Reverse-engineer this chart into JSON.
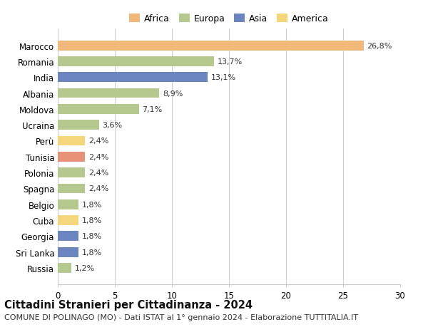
{
  "categories": [
    "Russia",
    "Sri Lanka",
    "Georgia",
    "Cuba",
    "Belgio",
    "Spagna",
    "Polonia",
    "Tunisia",
    "Perù",
    "Ucraina",
    "Moldova",
    "Albania",
    "India",
    "Romania",
    "Marocco"
  ],
  "values": [
    1.2,
    1.8,
    1.8,
    1.8,
    1.8,
    2.4,
    2.4,
    2.4,
    2.4,
    3.6,
    7.1,
    8.9,
    13.1,
    13.7,
    26.8
  ],
  "labels": [
    "1,2%",
    "1,8%",
    "1,8%",
    "1,8%",
    "1,8%",
    "2,4%",
    "2,4%",
    "2,4%",
    "2,4%",
    "3,6%",
    "7,1%",
    "8,9%",
    "13,1%",
    "13,7%",
    "26,8%"
  ],
  "colors": [
    "#b5c98e",
    "#6b85c0",
    "#6b85c0",
    "#f5d67a",
    "#b5c98e",
    "#b5c98e",
    "#b5c98e",
    "#e8927a",
    "#f5d67a",
    "#b5c98e",
    "#b5c98e",
    "#b5c98e",
    "#6b85c0",
    "#b5c98e",
    "#f0b87a"
  ],
  "legend": [
    {
      "label": "Africa",
      "color": "#f0b87a"
    },
    {
      "label": "Europa",
      "color": "#b5c98e"
    },
    {
      "label": "Asia",
      "color": "#6b85c0"
    },
    {
      "label": "America",
      "color": "#f5d67a"
    }
  ],
  "title": "Cittadini Stranieri per Cittadinanza - 2024",
  "subtitle": "COMUNE DI POLINAGO (MO) - Dati ISTAT al 1° gennaio 2024 - Elaborazione TUTTITALIA.IT",
  "xlim": [
    0,
    30
  ],
  "xticks": [
    0,
    5,
    10,
    15,
    20,
    25,
    30
  ],
  "background_color": "#ffffff",
  "grid_color": "#cccccc",
  "bar_height": 0.62,
  "title_fontsize": 10.5,
  "subtitle_fontsize": 8.0,
  "label_fontsize": 8.0,
  "tick_fontsize": 8.5,
  "legend_fontsize": 9.0
}
